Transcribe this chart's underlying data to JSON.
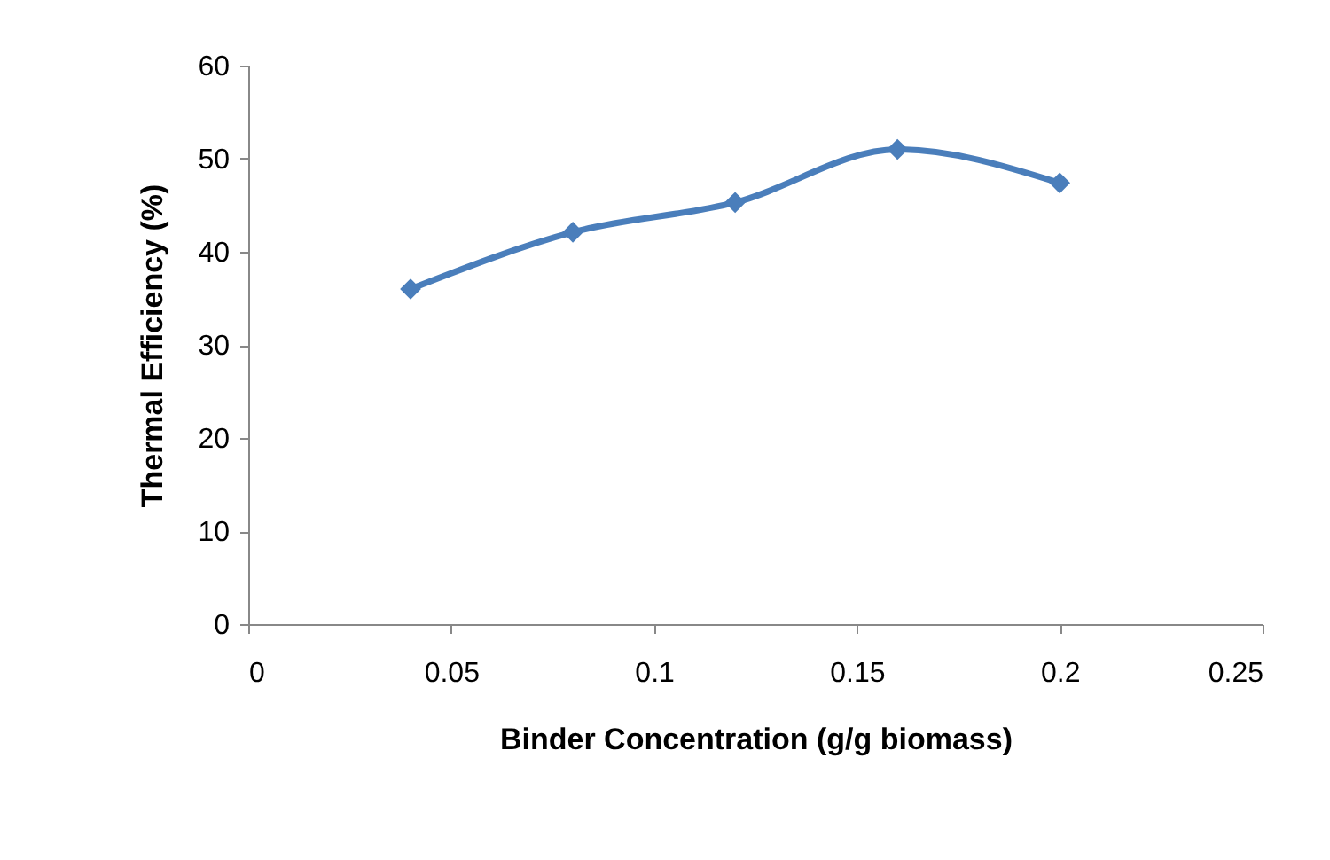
{
  "chart_data": {
    "type": "line",
    "xlabel": "Binder Concentration (g/g biomass)",
    "ylabel": "Thermal Efficiency (%)",
    "x": [
      0.04,
      0.08,
      0.12,
      0.16,
      0.2
    ],
    "series": [
      {
        "color": "#4a7ebb",
        "values": [
          36.0,
          42.1,
          45.3,
          51.0,
          47.4
        ]
      }
    ],
    "xlim": [
      0,
      0.25
    ],
    "xticks": [
      0,
      0.05,
      0.1,
      0.15,
      0.2,
      0.25
    ],
    "ylim": [
      0,
      60
    ],
    "yticks": [
      0,
      10,
      20,
      30,
      40,
      50,
      60
    ],
    "grid": false,
    "legend": false,
    "marker": "diamond",
    "line_style": "solid"
  }
}
